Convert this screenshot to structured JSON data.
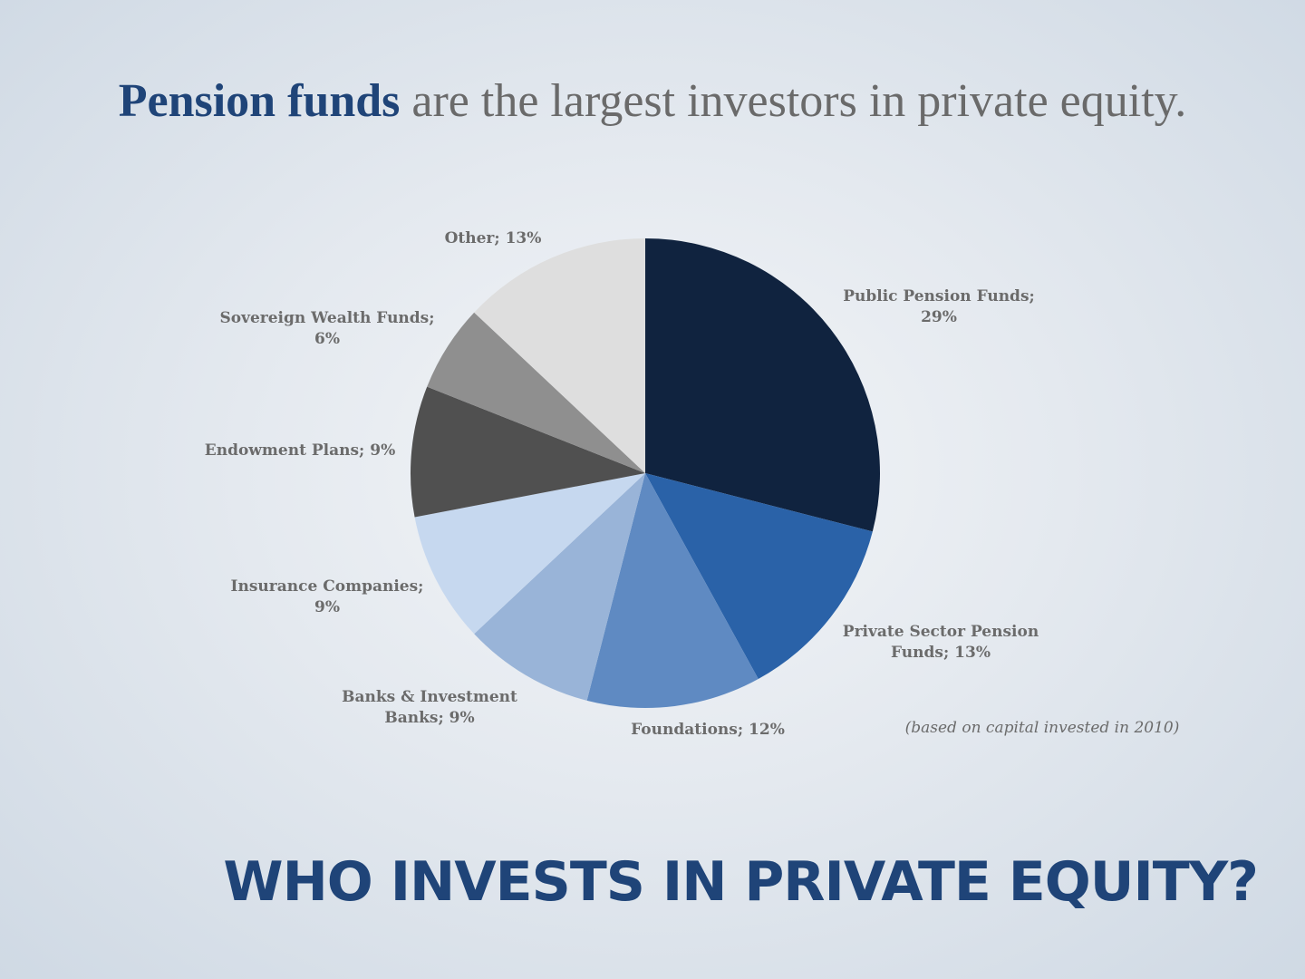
{
  "headline": {
    "strong": "Pension funds",
    "rest": "are the largest investors in private equity."
  },
  "footnote": "(based on capital invested in 2010)",
  "slide_title": "WHO INVESTS IN PRIVATE EQUITY?",
  "chart_data": {
    "type": "pie",
    "title": "",
    "slices": [
      {
        "label": "Public Pension Funds",
        "value": 29,
        "display": [
          "Public Pension Funds;",
          "29%"
        ],
        "color": "#10233f"
      },
      {
        "label": "Private Sector Pension Funds",
        "value": 13,
        "display": [
          "Private Sector Pension",
          "Funds; 13%"
        ],
        "color": "#2a62a8"
      },
      {
        "label": "Foundations",
        "value": 12,
        "display": [
          "Foundations; 12%"
        ],
        "color": "#5f8ac2"
      },
      {
        "label": "Banks & Investment Banks",
        "value": 9,
        "display": [
          "Banks & Investment",
          "Banks; 9%"
        ],
        "color": "#99b4d8"
      },
      {
        "label": "Insurance Companies",
        "value": 9,
        "display": [
          "Insurance Companies;",
          "9%"
        ],
        "color": "#c6d8ef"
      },
      {
        "label": "Endowment Plans",
        "value": 9,
        "display": [
          "Endowment Plans; 9%"
        ],
        "color": "#505050"
      },
      {
        "label": "Sovereign Wealth Funds",
        "value": 6,
        "display": [
          "Sovereign Wealth Funds;",
          "6%"
        ],
        "color": "#8f8f8f"
      },
      {
        "label": "Other",
        "value": 13,
        "display": [
          "Other; 13%"
        ],
        "color": "#dedede"
      }
    ]
  }
}
